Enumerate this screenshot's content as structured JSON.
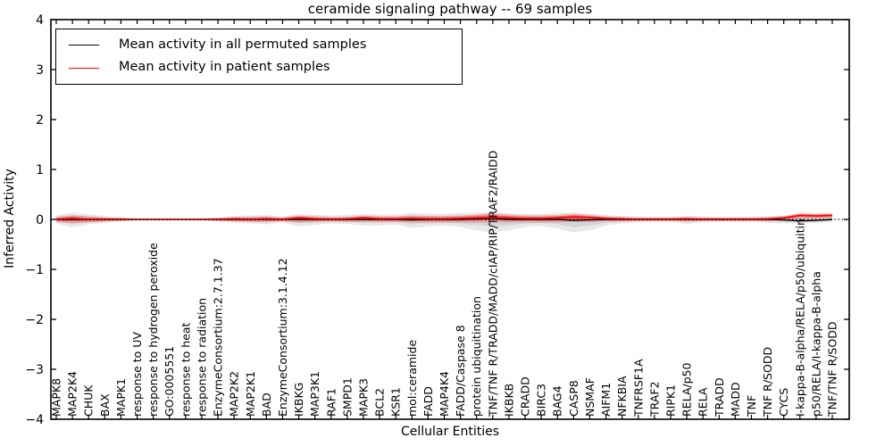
{
  "title": "ceramide signaling pathway -- 69 samples",
  "legend": {
    "items": [
      {
        "label": "Mean activity in all permuted samples",
        "color": "#000000"
      },
      {
        "label": "Mean activity in patient samples",
        "color": "#ff0000"
      }
    ]
  },
  "axes": {
    "x_label": "Cellular Entities",
    "y_label": "Inferred Activity",
    "y_tick_labels": [
      "4",
      "3",
      "2",
      "1",
      "0",
      "−1",
      "−2",
      "−3",
      "−4"
    ],
    "y_tick_values": [
      4,
      3,
      2,
      1,
      0,
      -1,
      -2,
      -3,
      -4
    ]
  },
  "colors": {
    "permuted_line": "#000000",
    "patient_line": "#ff0000",
    "permuted_band": "rgba(128,128,128,0.18)",
    "patient_band_outer": "rgba(255,0,0,0.22)",
    "patient_band_inner": "rgba(255,0,0,0.35)",
    "zero_line": "#000000",
    "frame": "#000000"
  },
  "chart_data": {
    "type": "line",
    "title": "ceramide signaling pathway -- 69 samples",
    "xlabel": "Cellular Entities",
    "ylabel": "Inferred Activity",
    "ylim": [
      -4,
      4
    ],
    "grid": false,
    "legend_position": "upper left",
    "zero_line": 0,
    "categories": [
      "MAPK8",
      "MAP2K4",
      "CHUK",
      "BAX",
      "MAPK1",
      "response to UV",
      "response to hydrogen peroxide",
      "GO:0005551",
      "response to heat",
      "response to radiation",
      "EnzymeConsortium:2.7.1.37",
      "MAP2K2",
      "MAP2K1",
      "BAD",
      "EnzymeConsortium:3.1.4.12",
      "IKBKG",
      "MAP3K1",
      "RAF1",
      "SMPD1",
      "MAPK3",
      "BCL2",
      "KSR1",
      "mol:ceramide",
      "FADD",
      "MAP4K4",
      "FADD/Caspase 8",
      "protein ubiquitination",
      "TNF/TNF R/TRADD/MADD/cIAP/RIP/TRAF2/RAIDD",
      "IKBKB",
      "CRADD",
      "BIRC3",
      "BAG4",
      "CASP8",
      "NSMAF",
      "AIFM1",
      "NFKBIA",
      "TNFRSF1A",
      "TRAF2",
      "RIPK1",
      "RELA/p50",
      "RELA",
      "TRADD",
      "MADD",
      "TNF",
      "TNF R/SODD",
      "CYCS",
      "I-kappa-B-alpha/RELA/p50/ubiquitin",
      "p50/RELA/I-kappa-B-alpha",
      "TNF/TNF R/SODD"
    ],
    "series": [
      {
        "name": "Mean activity in all permuted samples",
        "color": "#000000",
        "values": [
          0,
          0,
          0,
          0,
          0,
          0,
          0,
          0,
          0,
          0,
          0,
          0,
          0,
          0,
          0,
          0,
          0,
          0,
          0,
          0,
          0,
          0,
          -0.01,
          0,
          0,
          0,
          0.01,
          0.02,
          0,
          0,
          0,
          0,
          -0.02,
          -0.01,
          0,
          0,
          0,
          0,
          0,
          0,
          0,
          0,
          0,
          0,
          0,
          -0.01,
          -0.03,
          -0.02,
          0
        ]
      },
      {
        "name": "Mean activity in patient samples",
        "color": "#ff0000",
        "values": [
          0,
          0.02,
          0,
          0,
          0,
          0,
          0,
          0,
          0,
          0,
          0,
          0.01,
          0,
          0.01,
          0,
          0.03,
          0.01,
          0,
          0.01,
          0.03,
          0.01,
          0.01,
          0.02,
          0.01,
          0.01,
          0.02,
          0.03,
          0.04,
          0.03,
          0.02,
          0.02,
          0.03,
          0.05,
          0.04,
          0.02,
          0.01,
          0,
          0,
          0,
          0.01,
          0,
          0,
          0,
          0,
          0.01,
          0.03,
          0.08,
          0.07,
          0.08
        ]
      }
    ],
    "bands": [
      {
        "name": "permuted-sample-range",
        "upper": [
          0.08,
          0.14,
          0.1,
          0.07,
          0.05,
          0.02,
          0.01,
          0.01,
          0.01,
          0.02,
          0.04,
          0.07,
          0.08,
          0.09,
          0.06,
          0.11,
          0.09,
          0.08,
          0.09,
          0.11,
          0.1,
          0.1,
          0.13,
          0.12,
          0.11,
          0.13,
          0.14,
          0.14,
          0.12,
          0.12,
          0.11,
          0.13,
          0.14,
          0.12,
          0.09,
          0.07,
          0.06,
          0.05,
          0.05,
          0.07,
          0.06,
          0.05,
          0.05,
          0.05,
          0.06,
          0.07,
          0.08,
          0.07,
          0.06
        ],
        "lower": [
          -0.08,
          -0.16,
          -0.1,
          -0.07,
          -0.05,
          -0.02,
          -0.01,
          -0.01,
          -0.01,
          -0.02,
          -0.04,
          -0.07,
          -0.08,
          -0.1,
          -0.06,
          -0.14,
          -0.11,
          -0.08,
          -0.09,
          -0.12,
          -0.12,
          -0.1,
          -0.17,
          -0.14,
          -0.12,
          -0.15,
          -0.22,
          -0.26,
          -0.22,
          -0.15,
          -0.13,
          -0.18,
          -0.26,
          -0.22,
          -0.12,
          -0.08,
          -0.06,
          -0.05,
          -0.05,
          -0.09,
          -0.06,
          -0.05,
          -0.05,
          -0.05,
          -0.07,
          -0.08,
          -0.08,
          -0.07,
          -0.05
        ]
      },
      {
        "name": "patient-sample-range",
        "upper": [
          0.05,
          0.09,
          0.06,
          0.04,
          0.03,
          0.01,
          0.01,
          0.01,
          0.01,
          0.01,
          0.03,
          0.05,
          0.05,
          0.06,
          0.04,
          0.08,
          0.06,
          0.05,
          0.05,
          0.08,
          0.06,
          0.06,
          0.08,
          0.07,
          0.07,
          0.08,
          0.1,
          0.13,
          0.1,
          0.08,
          0.08,
          0.09,
          0.12,
          0.09,
          0.06,
          0.05,
          0.04,
          0.04,
          0.04,
          0.05,
          0.04,
          0.04,
          0.04,
          0.04,
          0.05,
          0.07,
          0.13,
          0.12,
          0.13
        ],
        "lower": [
          -0.05,
          -0.08,
          -0.06,
          -0.04,
          -0.03,
          -0.01,
          -0.01,
          -0.01,
          -0.01,
          -0.01,
          -0.03,
          -0.04,
          -0.05,
          -0.05,
          -0.04,
          -0.06,
          -0.05,
          -0.04,
          -0.05,
          -0.05,
          -0.05,
          -0.05,
          -0.06,
          -0.06,
          -0.06,
          -0.06,
          -0.06,
          -0.06,
          -0.06,
          -0.06,
          -0.06,
          -0.06,
          -0.05,
          -0.05,
          -0.04,
          -0.04,
          -0.03,
          -0.03,
          -0.03,
          -0.04,
          -0.03,
          -0.03,
          -0.03,
          -0.03,
          -0.03,
          -0.02,
          0.02,
          0.02,
          0.03
        ]
      }
    ]
  }
}
